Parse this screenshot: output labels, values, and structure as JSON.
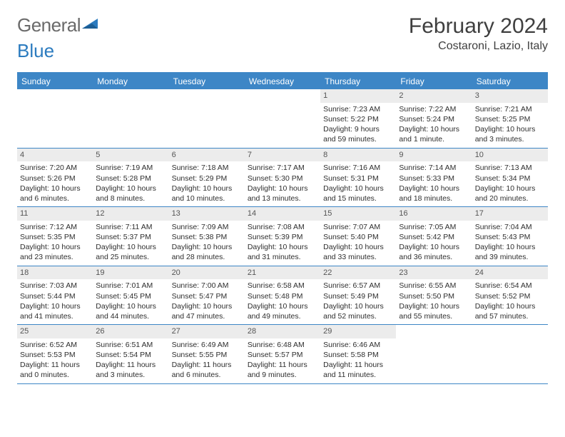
{
  "logo": {
    "part1": "General",
    "part2": "Blue"
  },
  "month_title": "February 2024",
  "location": "Costaroni, Lazio, Italy",
  "colors": {
    "brand_blue": "#3d86c6",
    "logo_gray": "#6a6a6a",
    "logo_blue": "#2b7bbf",
    "daynum_bg": "#ececec",
    "text": "#2e2e2e"
  },
  "day_headers": [
    "Sunday",
    "Monday",
    "Tuesday",
    "Wednesday",
    "Thursday",
    "Friday",
    "Saturday"
  ],
  "weeks": [
    [
      null,
      null,
      null,
      null,
      {
        "n": "1",
        "sunrise": "7:23 AM",
        "sunset": "5:22 PM",
        "daylight": "9 hours and 59 minutes."
      },
      {
        "n": "2",
        "sunrise": "7:22 AM",
        "sunset": "5:24 PM",
        "daylight": "10 hours and 1 minute."
      },
      {
        "n": "3",
        "sunrise": "7:21 AM",
        "sunset": "5:25 PM",
        "daylight": "10 hours and 3 minutes."
      }
    ],
    [
      {
        "n": "4",
        "sunrise": "7:20 AM",
        "sunset": "5:26 PM",
        "daylight": "10 hours and 6 minutes."
      },
      {
        "n": "5",
        "sunrise": "7:19 AM",
        "sunset": "5:28 PM",
        "daylight": "10 hours and 8 minutes."
      },
      {
        "n": "6",
        "sunrise": "7:18 AM",
        "sunset": "5:29 PM",
        "daylight": "10 hours and 10 minutes."
      },
      {
        "n": "7",
        "sunrise": "7:17 AM",
        "sunset": "5:30 PM",
        "daylight": "10 hours and 13 minutes."
      },
      {
        "n": "8",
        "sunrise": "7:16 AM",
        "sunset": "5:31 PM",
        "daylight": "10 hours and 15 minutes."
      },
      {
        "n": "9",
        "sunrise": "7:14 AM",
        "sunset": "5:33 PM",
        "daylight": "10 hours and 18 minutes."
      },
      {
        "n": "10",
        "sunrise": "7:13 AM",
        "sunset": "5:34 PM",
        "daylight": "10 hours and 20 minutes."
      }
    ],
    [
      {
        "n": "11",
        "sunrise": "7:12 AM",
        "sunset": "5:35 PM",
        "daylight": "10 hours and 23 minutes."
      },
      {
        "n": "12",
        "sunrise": "7:11 AM",
        "sunset": "5:37 PM",
        "daylight": "10 hours and 25 minutes."
      },
      {
        "n": "13",
        "sunrise": "7:09 AM",
        "sunset": "5:38 PM",
        "daylight": "10 hours and 28 minutes."
      },
      {
        "n": "14",
        "sunrise": "7:08 AM",
        "sunset": "5:39 PM",
        "daylight": "10 hours and 31 minutes."
      },
      {
        "n": "15",
        "sunrise": "7:07 AM",
        "sunset": "5:40 PM",
        "daylight": "10 hours and 33 minutes."
      },
      {
        "n": "16",
        "sunrise": "7:05 AM",
        "sunset": "5:42 PM",
        "daylight": "10 hours and 36 minutes."
      },
      {
        "n": "17",
        "sunrise": "7:04 AM",
        "sunset": "5:43 PM",
        "daylight": "10 hours and 39 minutes."
      }
    ],
    [
      {
        "n": "18",
        "sunrise": "7:03 AM",
        "sunset": "5:44 PM",
        "daylight": "10 hours and 41 minutes."
      },
      {
        "n": "19",
        "sunrise": "7:01 AM",
        "sunset": "5:45 PM",
        "daylight": "10 hours and 44 minutes."
      },
      {
        "n": "20",
        "sunrise": "7:00 AM",
        "sunset": "5:47 PM",
        "daylight": "10 hours and 47 minutes."
      },
      {
        "n": "21",
        "sunrise": "6:58 AM",
        "sunset": "5:48 PM",
        "daylight": "10 hours and 49 minutes."
      },
      {
        "n": "22",
        "sunrise": "6:57 AM",
        "sunset": "5:49 PM",
        "daylight": "10 hours and 52 minutes."
      },
      {
        "n": "23",
        "sunrise": "6:55 AM",
        "sunset": "5:50 PM",
        "daylight": "10 hours and 55 minutes."
      },
      {
        "n": "24",
        "sunrise": "6:54 AM",
        "sunset": "5:52 PM",
        "daylight": "10 hours and 57 minutes."
      }
    ],
    [
      {
        "n": "25",
        "sunrise": "6:52 AM",
        "sunset": "5:53 PM",
        "daylight": "11 hours and 0 minutes."
      },
      {
        "n": "26",
        "sunrise": "6:51 AM",
        "sunset": "5:54 PM",
        "daylight": "11 hours and 3 minutes."
      },
      {
        "n": "27",
        "sunrise": "6:49 AM",
        "sunset": "5:55 PM",
        "daylight": "11 hours and 6 minutes."
      },
      {
        "n": "28",
        "sunrise": "6:48 AM",
        "sunset": "5:57 PM",
        "daylight": "11 hours and 9 minutes."
      },
      {
        "n": "29",
        "sunrise": "6:46 AM",
        "sunset": "5:58 PM",
        "daylight": "11 hours and 11 minutes."
      },
      null,
      null
    ]
  ],
  "labels": {
    "sunrise": "Sunrise: ",
    "sunset": "Sunset: ",
    "daylight": "Daylight: "
  }
}
